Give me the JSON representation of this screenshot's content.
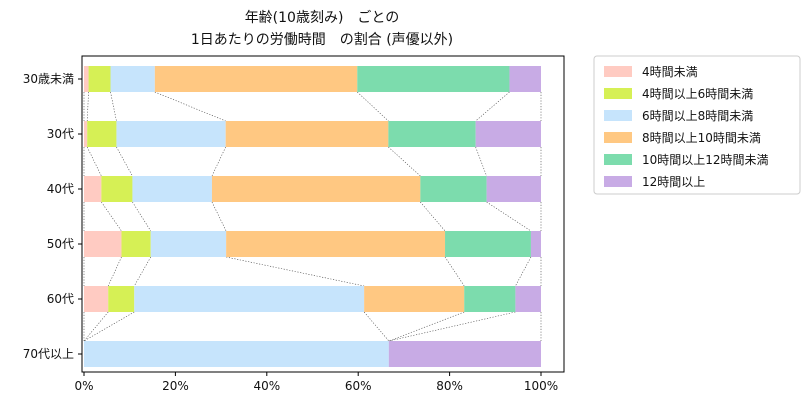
{
  "chart_data": {
    "type": "bar",
    "orientation": "horizontal",
    "stacked": true,
    "normalized": true,
    "title_lines": [
      "年齢(10歳刻み)　ごとの",
      "1日あたりの労働時間　の割合 (声優以外)"
    ],
    "categories": [
      "30歳未満",
      "30代",
      "40代",
      "50代",
      "60代",
      "70代以上"
    ],
    "series": [
      {
        "name": "4時間未満",
        "color": "#ffcbc2",
        "values": [
          1.0,
          0.7,
          3.8,
          8.2,
          5.3,
          0.0
        ]
      },
      {
        "name": "4時間以上6時間未満",
        "color": "#d6f055",
        "values": [
          4.8,
          6.4,
          6.8,
          6.4,
          5.7,
          0.0
        ]
      },
      {
        "name": "6時間以上8時間未満",
        "color": "#c6e4fc",
        "values": [
          9.7,
          23.9,
          17.4,
          16.5,
          50.3,
          66.7
        ]
      },
      {
        "name": "8時間以上10時間未満",
        "color": "#ffc882",
        "values": [
          44.3,
          35.6,
          45.6,
          47.9,
          21.9,
          0.0
        ]
      },
      {
        "name": "10時間以上12時間未満",
        "color": "#7cdcad",
        "values": [
          33.3,
          19.1,
          14.5,
          18.8,
          11.2,
          0.0
        ]
      },
      {
        "name": "12時間以上",
        "color": "#c8abe5",
        "values": [
          6.9,
          14.3,
          11.9,
          2.2,
          5.6,
          33.3
        ]
      }
    ],
    "xlim": [
      0,
      100
    ],
    "xticks": [
      "0%",
      "20%",
      "40%",
      "60%",
      "80%",
      "100%"
    ],
    "grid": false,
    "legend_position": "outside-right"
  }
}
